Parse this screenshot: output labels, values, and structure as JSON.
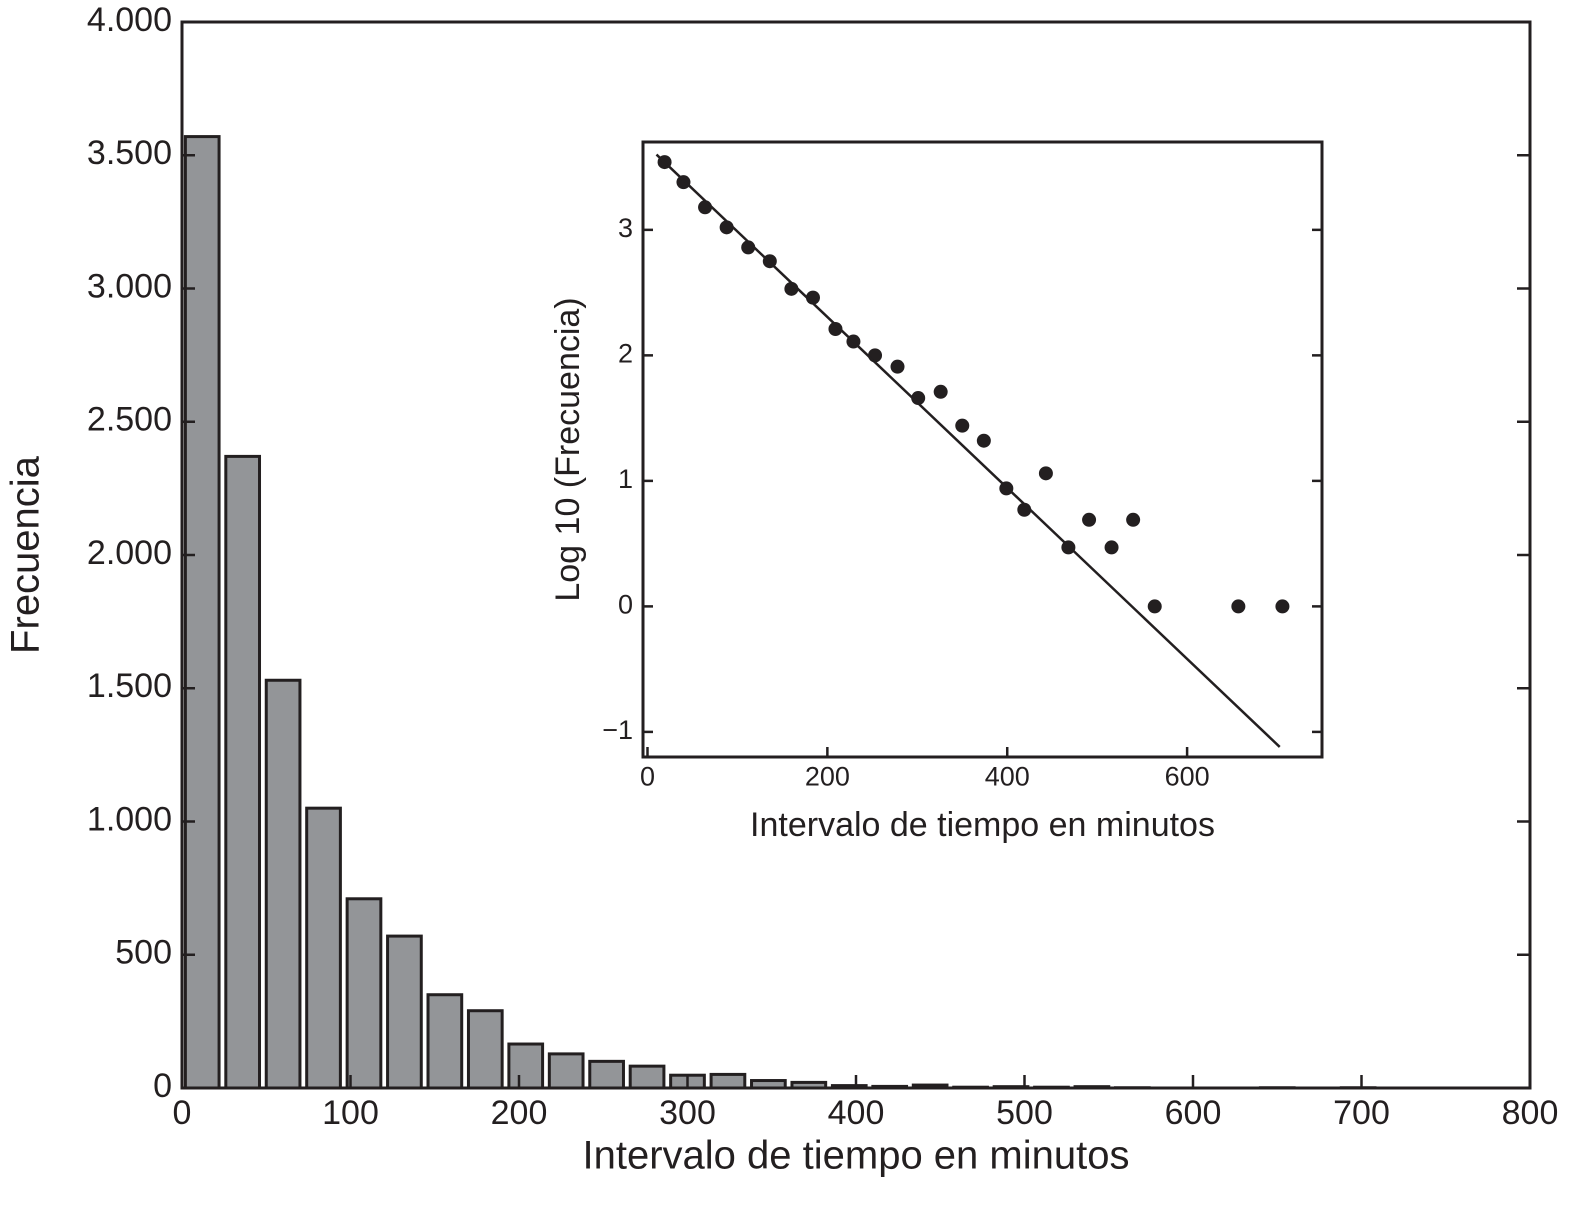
{
  "chart_data": [
    {
      "type": "bar",
      "xlabel": "Intervalo de tiempo en minutos",
      "ylabel": "Frecuencia",
      "x": [
        12,
        36,
        60,
        84,
        108,
        132,
        156,
        180,
        204,
        228,
        252,
        276,
        300,
        324,
        348,
        372,
        396,
        420,
        444,
        468,
        492,
        516,
        540,
        564,
        650,
        698
      ],
      "values": [
        3570,
        2370,
        1530,
        1050,
        710,
        570,
        350,
        290,
        165,
        128,
        100,
        82,
        48,
        51,
        28,
        21,
        9,
        6,
        11,
        3,
        5,
        3,
        5,
        1,
        1,
        1
      ],
      "color": "#939598",
      "xlim": [
        0,
        800
      ],
      "ylim": [
        0,
        4000
      ],
      "xticks": [
        0,
        100,
        200,
        300,
        400,
        500,
        600,
        700,
        800
      ],
      "yticks": [
        0,
        500,
        {
          "value": 1000,
          "label": "1.000"
        },
        {
          "value": 1500,
          "label": "1.500"
        },
        {
          "value": 2000,
          "label": "2.000"
        },
        {
          "value": 2500,
          "label": "2.500"
        },
        {
          "value": 3000,
          "label": "3.000"
        },
        {
          "value": 3500,
          "label": "3.500"
        },
        {
          "value": 4000,
          "label": "4.000"
        }
      ]
    },
    {
      "type": "scatter",
      "xlabel": "Intervalo de tiempo en minutos",
      "ylabel": "Log 10 (Frecuencia)",
      "series": [
        {
          "mode": "markers",
          "color": "#231f20",
          "x": [
            19,
            40,
            64,
            88,
            112,
            136,
            160,
            184,
            209,
            229,
            253,
            278,
            301,
            326,
            350,
            374,
            399,
            419,
            443,
            468,
            491,
            516,
            540,
            564,
            657,
            706
          ],
          "values": [
            3.54,
            3.38,
            3.18,
            3.02,
            2.86,
            2.75,
            2.53,
            2.46,
            2.21,
            2.11,
            2.0,
            1.91,
            1.66,
            1.71,
            1.44,
            1.32,
            0.94,
            0.77,
            1.06,
            0.47,
            0.69,
            0.47,
            0.69,
            0,
            0,
            0
          ]
        },
        {
          "mode": "lines",
          "color": "#231f20",
          "x": [
            10,
            703
          ],
          "values": [
            3.6,
            -1.12
          ]
        }
      ],
      "xlim": [
        -5,
        750
      ],
      "ylim": [
        -1.2,
        3.7
      ],
      "xticks": [
        0,
        200,
        400,
        600
      ],
      "yticks": [
        {
          "value": -1,
          "label": "−1"
        },
        0,
        1,
        2,
        3
      ]
    }
  ]
}
